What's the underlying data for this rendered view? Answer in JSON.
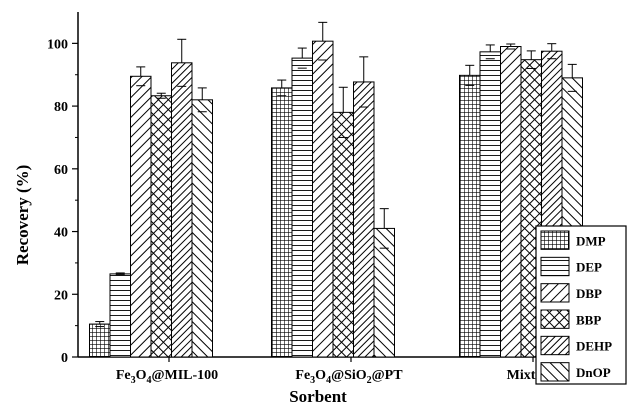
{
  "chart_data": {
    "type": "bar",
    "xlabel": "Sorbent",
    "ylabel": "Recovery (%)",
    "ylim": [
      0,
      110
    ],
    "yticks": [
      0,
      20,
      40,
      60,
      80,
      100
    ],
    "categories": [
      {
        "main": "Fe",
        "parts": [
          [
            "Fe",
            ""
          ],
          [
            "3",
            "sub"
          ],
          [
            "O",
            ""
          ],
          [
            "4",
            "sub"
          ],
          [
            "@MIL-100",
            ""
          ]
        ],
        "text": "Fe3O4@MIL-100"
      },
      {
        "main": "Fe",
        "parts": [
          [
            "Fe",
            ""
          ],
          [
            "3",
            "sub"
          ],
          [
            "O",
            ""
          ],
          [
            "4",
            "sub"
          ],
          [
            "@SiO",
            ""
          ],
          [
            "2",
            "sub"
          ],
          [
            "@PT",
            ""
          ]
        ],
        "text": "Fe3O4@SiO2@PT"
      },
      {
        "main": "Mixture",
        "parts": [
          [
            "Mixture",
            ""
          ]
        ],
        "text": "Mixture"
      }
    ],
    "legend_position": "bottom-right",
    "series": [
      {
        "name": "DMP",
        "pattern": "grid",
        "values": [
          10.5,
          85.8,
          89.8
        ],
        "errors": [
          0.8,
          2.5,
          3.2
        ]
      },
      {
        "name": "DEP",
        "pattern": "hlines",
        "values": [
          26.5,
          95.3,
          97.3
        ],
        "errors": [
          0.3,
          3.2,
          2.2
        ]
      },
      {
        "name": "DBP",
        "pattern": "diag-up",
        "values": [
          89.5,
          100.7,
          99.0
        ],
        "errors": [
          3.0,
          6.0,
          0.8
        ]
      },
      {
        "name": "BBP",
        "pattern": "crosshatch",
        "values": [
          83.3,
          78.0,
          94.8
        ],
        "errors": [
          0.8,
          8.0,
          2.8
        ]
      },
      {
        "name": "DEHP",
        "pattern": "diag-up2",
        "values": [
          93.8,
          87.7,
          97.5
        ],
        "errors": [
          7.5,
          8.0,
          2.4
        ]
      },
      {
        "name": "DnOP",
        "pattern": "diag-down",
        "values": [
          82.0,
          41.0,
          89.0
        ],
        "errors": [
          3.8,
          6.3,
          4.3
        ]
      }
    ]
  }
}
